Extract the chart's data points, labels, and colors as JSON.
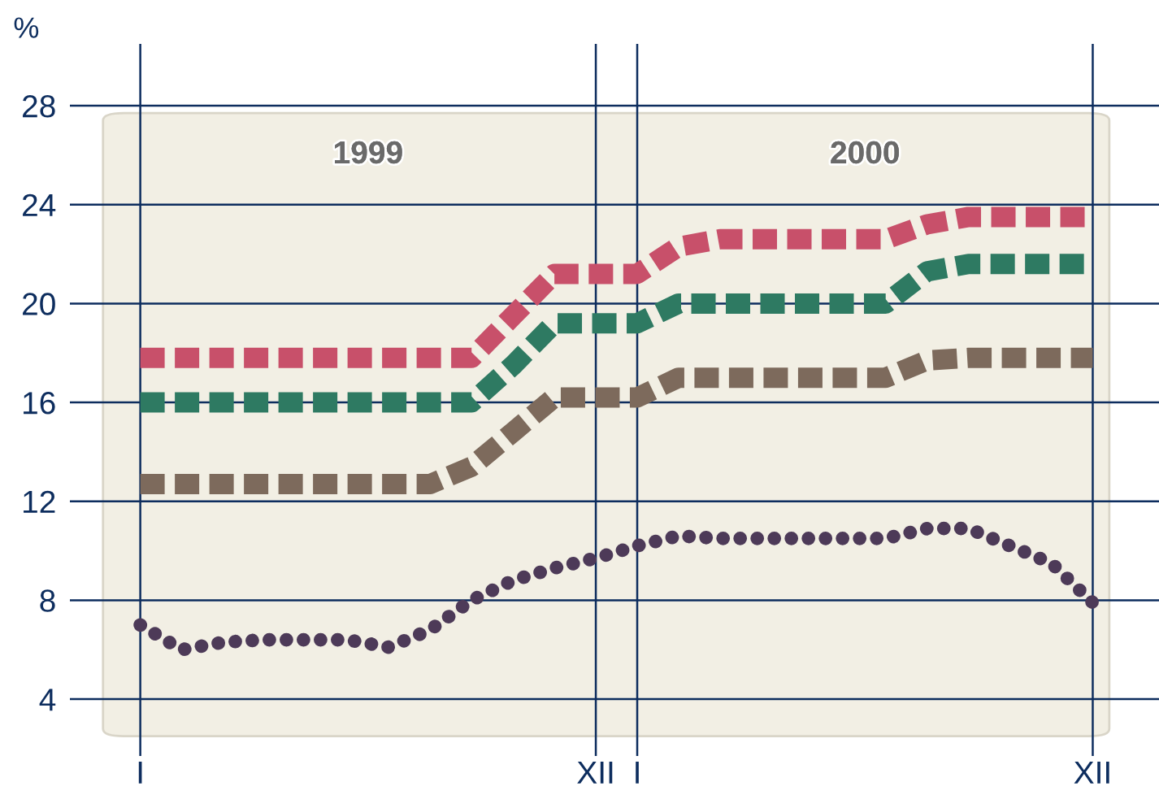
{
  "chart_data": {
    "type": "line",
    "ylabel": "%",
    "annotations": [
      "1999",
      "2000"
    ],
    "categories": [
      "I",
      null,
      null,
      null,
      null,
      null,
      null,
      null,
      null,
      null,
      null,
      "XII",
      "I",
      null,
      null,
      null,
      null,
      null,
      null,
      null,
      null,
      null,
      null,
      "XII"
    ],
    "ylim": [
      1.7,
      30.5
    ],
    "yticks": [
      4,
      8,
      12,
      16,
      20,
      24,
      28
    ],
    "grid": true,
    "series": [
      {
        "color": "#c8506a",
        "line_style": "dashed",
        "values": [
          17.8,
          17.8,
          17.8,
          17.8,
          17.8,
          17.8,
          17.8,
          17.8,
          17.8,
          19.5,
          21.2,
          21.2,
          21.2,
          22.3,
          22.6,
          22.6,
          22.6,
          22.6,
          22.6,
          23.2,
          23.5,
          23.5,
          23.5,
          23.5
        ]
      },
      {
        "color": "#2e7a62",
        "line_style": "dashed",
        "values": [
          16.0,
          16.0,
          16.0,
          16.0,
          16.0,
          16.0,
          16.0,
          16.0,
          16.0,
          17.5,
          19.2,
          19.2,
          19.2,
          20.0,
          20.0,
          20.0,
          20.0,
          20.0,
          20.0,
          21.3,
          21.6,
          21.6,
          21.6,
          21.6
        ]
      },
      {
        "color": "#7d6a5c",
        "line_style": "dashed",
        "values": [
          12.7,
          12.7,
          12.7,
          12.7,
          12.7,
          12.7,
          12.7,
          12.7,
          13.4,
          14.8,
          16.2,
          16.2,
          16.2,
          17.0,
          17.0,
          17.0,
          17.0,
          17.0,
          17.0,
          17.7,
          17.8,
          17.8,
          17.8,
          17.8
        ]
      },
      {
        "color": "#4d3a58",
        "line_style": "dotted",
        "values": [
          7.0,
          6.0,
          6.3,
          6.4,
          6.4,
          6.4,
          6.1,
          6.8,
          8.0,
          8.8,
          9.3,
          9.7,
          10.2,
          10.6,
          10.5,
          10.5,
          10.5,
          10.5,
          10.5,
          10.9,
          10.9,
          10.2,
          9.5,
          7.9
        ]
      }
    ]
  }
}
